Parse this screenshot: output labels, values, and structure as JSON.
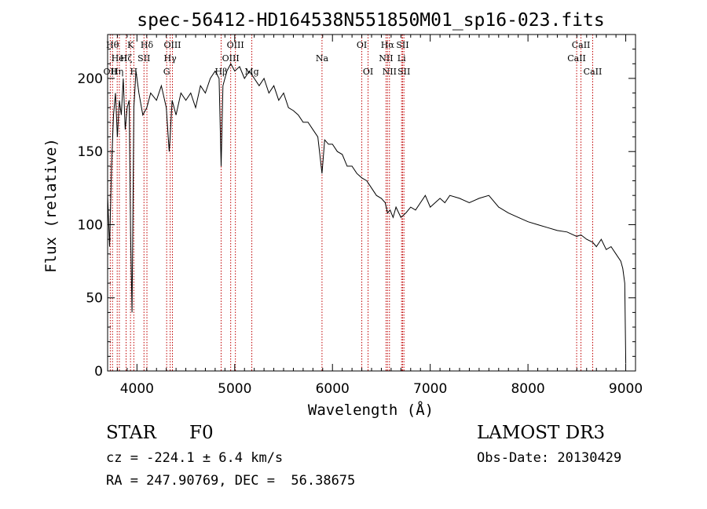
{
  "chart_data": {
    "type": "line",
    "title": "spec-56412-HD164538N551850M01_sp16-023.fits",
    "xlabel": "Wavelength (Å)",
    "ylabel": "Flux (relative)",
    "xlim": [
      3700,
      9100
    ],
    "ylim": [
      0,
      230
    ],
    "xticks": [
      4000,
      5000,
      6000,
      7000,
      8000,
      9000
    ],
    "yticks": [
      0,
      50,
      100,
      150,
      200
    ],
    "grid": false,
    "legend": "none",
    "line_color": "#000000",
    "marker_color": "#c00000",
    "series": [
      {
        "x": [
          3700,
          3720,
          3740,
          3760,
          3780,
          3800,
          3820,
          3840,
          3860,
          3880,
          3900,
          3920,
          3935,
          3950,
          3968,
          3990,
          4020,
          4060,
          4101,
          4140,
          4200,
          4250,
          4300,
          4330,
          4340,
          4360,
          4400,
          4450,
          4500,
          4550,
          4600,
          4650,
          4700,
          4750,
          4800,
          4840,
          4861,
          4880,
          4920,
          4960,
          5000,
          5050,
          5100,
          5150,
          5200,
          5250,
          5300,
          5350,
          5400,
          5450,
          5500,
          5550,
          5600,
          5650,
          5700,
          5750,
          5800,
          5850,
          5893,
          5920,
          5960,
          6000,
          6050,
          6100,
          6150,
          6200,
          6250,
          6300,
          6350,
          6400,
          6450,
          6500,
          6540,
          6563,
          6590,
          6620,
          6650,
          6700,
          6750,
          6800,
          6850,
          6900,
          6950,
          7000,
          7050,
          7100,
          7150,
          7200,
          7300,
          7400,
          7500,
          7600,
          7700,
          7800,
          7900,
          8000,
          8100,
          8200,
          8300,
          8400,
          8498,
          8542,
          8600,
          8662,
          8700,
          8750,
          8800,
          8850,
          8900,
          8950,
          8970,
          8990,
          9000
        ],
        "y": [
          120,
          85,
          140,
          175,
          190,
          160,
          185,
          175,
          200,
          165,
          180,
          185,
          95,
          40,
          180,
          205,
          190,
          175,
          180,
          190,
          185,
          195,
          180,
          150,
          160,
          185,
          175,
          190,
          185,
          190,
          180,
          195,
          190,
          200,
          205,
          200,
          140,
          195,
          205,
          210,
          205,
          208,
          200,
          205,
          200,
          195,
          200,
          190,
          195,
          185,
          190,
          180,
          178,
          175,
          170,
          170,
          165,
          160,
          135,
          158,
          155,
          155,
          150,
          148,
          140,
          140,
          135,
          132,
          130,
          125,
          120,
          118,
          115,
          108,
          110,
          105,
          112,
          105,
          108,
          112,
          110,
          115,
          120,
          112,
          115,
          118,
          115,
          120,
          118,
          115,
          118,
          120,
          112,
          108,
          105,
          102,
          100,
          98,
          96,
          95,
          92,
          93,
          90,
          88,
          85,
          90,
          83,
          85,
          80,
          75,
          70,
          60,
          5
        ]
      }
    ],
    "lines": [
      {
        "x": 3727,
        "label": "OII",
        "row": 2
      },
      {
        "x": 3750,
        "label": "Hθ",
        "row": 0
      },
      {
        "x": 3798,
        "label": "Hη",
        "row": 2
      },
      {
        "x": 3820,
        "label": "HeI",
        "row": 1
      },
      {
        "x": 3889,
        "label": "Hζ",
        "row": 1
      },
      {
        "x": 3934,
        "label": "K",
        "row": 0
      },
      {
        "x": 3968,
        "label": "H",
        "row": 2
      },
      {
        "x": 4072,
        "label": "SII",
        "row": 1
      },
      {
        "x": 4102,
        "label": "Hδ",
        "row": 0
      },
      {
        "x": 4304,
        "label": "G",
        "row": 2
      },
      {
        "x": 4340,
        "label": "Hγ",
        "row": 1
      },
      {
        "x": 4363,
        "label": "OIII",
        "row": 0
      },
      {
        "x": 4861,
        "label": "Hβ",
        "row": 2
      },
      {
        "x": 4959,
        "label": "OIII",
        "row": 1
      },
      {
        "x": 5007,
        "label": "OIII",
        "row": 0
      },
      {
        "x": 5175,
        "label": "Mg",
        "row": 2
      },
      {
        "x": 5893,
        "label": "Na",
        "row": 1
      },
      {
        "x": 6300,
        "label": "OI",
        "row": 0
      },
      {
        "x": 6364,
        "label": "OI",
        "row": 2
      },
      {
        "x": 6548,
        "label": "NII",
        "row": 1
      },
      {
        "x": 6563,
        "label": "Hα",
        "row": 0
      },
      {
        "x": 6583,
        "label": "NII",
        "row": 2
      },
      {
        "x": 6707,
        "label": "Li",
        "row": 1
      },
      {
        "x": 6717,
        "label": "SII",
        "row": 0
      },
      {
        "x": 6731,
        "label": "SII",
        "row": 2
      },
      {
        "x": 8498,
        "label": "CaII",
        "row": 1
      },
      {
        "x": 8542,
        "label": "CaII",
        "row": 0
      },
      {
        "x": 8662,
        "label": "CaII",
        "row": 2
      }
    ]
  },
  "info": {
    "class_label": "STAR",
    "subclass": "F0",
    "survey": "LAMOST DR3",
    "redshift": "cz = -224.1 ± 6.4 km/s",
    "obs_date": "Obs-Date: 20130429",
    "coords": "RA = 247.90769, DEC =  56.38675"
  }
}
